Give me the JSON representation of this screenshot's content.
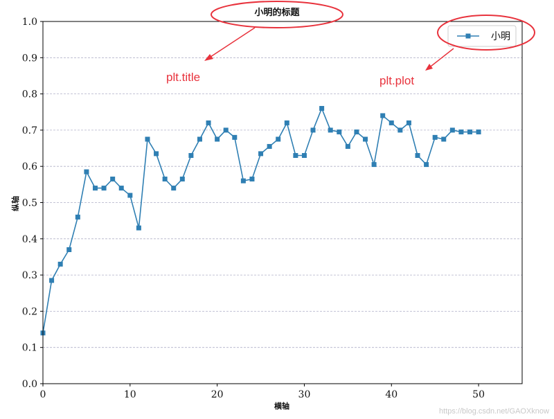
{
  "chart_data": {
    "type": "line",
    "title": "小明的标题",
    "xlabel": "横轴",
    "ylabel": "纵轴",
    "xlim": [
      0,
      55
    ],
    "ylim": [
      0,
      1.0
    ],
    "xticks": [
      0,
      10,
      20,
      30,
      40,
      50
    ],
    "xtick_labels": [
      "0",
      "10",
      "20",
      "30",
      "40",
      "50"
    ],
    "yticks": [
      0.0,
      0.1,
      0.2,
      0.3,
      0.4,
      0.5,
      0.6,
      0.7,
      0.8,
      0.9,
      1.0
    ],
    "ytick_labels": [
      "0.0",
      "0.1",
      "0.2",
      "0.3",
      "0.4",
      "0.5",
      "0.6",
      "0.7",
      "0.8",
      "0.9",
      "1.0"
    ],
    "grid": "horizontal dashed",
    "legend_position": "top-right",
    "marker": "square",
    "series": [
      {
        "name": "小明",
        "color": "#2f7fb3",
        "x": [
          0,
          1,
          2,
          3,
          4,
          5,
          6,
          7,
          8,
          9,
          10,
          11,
          12,
          13,
          14,
          15,
          16,
          17,
          18,
          19,
          20,
          21,
          22,
          23,
          24,
          25,
          26,
          27,
          28,
          29,
          30,
          31,
          32,
          33,
          34,
          35,
          36,
          37,
          38,
          39,
          40,
          41,
          42,
          43,
          44,
          45,
          46,
          47,
          48,
          49,
          50
        ],
        "values": [
          0.14,
          0.285,
          0.33,
          0.37,
          0.46,
          0.585,
          0.54,
          0.54,
          0.565,
          0.54,
          0.52,
          0.43,
          0.675,
          0.635,
          0.565,
          0.54,
          0.565,
          0.63,
          0.675,
          0.72,
          0.675,
          0.7,
          0.68,
          0.56,
          0.565,
          0.635,
          0.655,
          0.675,
          0.72,
          0.63,
          0.63,
          0.7,
          0.76,
          0.7,
          0.695,
          0.655,
          0.695,
          0.675,
          0.605,
          0.74,
          0.72,
          0.7,
          0.72,
          0.63,
          0.605,
          0.68,
          0.675,
          0.7,
          0.695,
          0.695,
          0.695
        ]
      }
    ]
  },
  "annotations": {
    "title_note": "plt.title",
    "plot_note": "plt.plot",
    "color": "#e8323c"
  },
  "watermark": "https://blog.csdn.net/GAOXknow"
}
